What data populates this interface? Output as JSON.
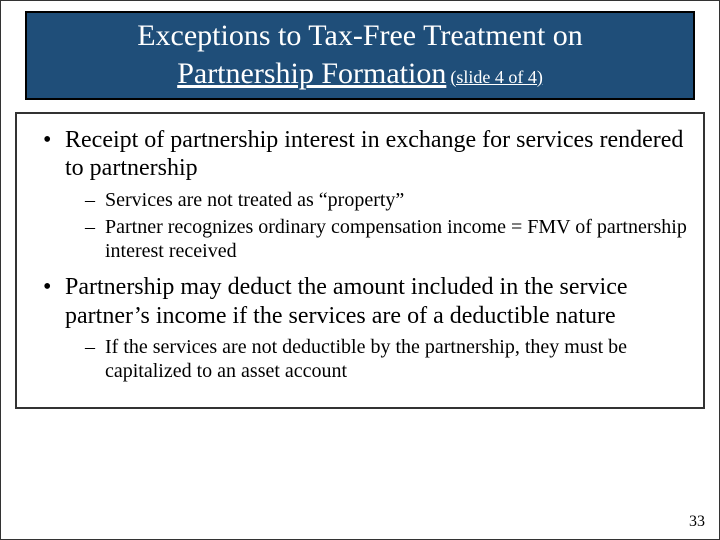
{
  "colors": {
    "title_bg": "#1f4e79",
    "title_text": "#ffffff",
    "body_text": "#000000",
    "border": "#000000",
    "slide_bg": "#ffffff"
  },
  "typography": {
    "title_fontsize_pt": 30,
    "subtitle_fontsize_pt": 18,
    "bullet_l1_fontsize_pt": 24,
    "bullet_l2_fontsize_pt": 20,
    "font_family": "Times New Roman"
  },
  "title": {
    "line1": "Exceptions to Tax-Free Treatment on",
    "line2": "Partnership Formation",
    "subtitle": "(slide 4 of 4)"
  },
  "bullets": [
    {
      "text": "Receipt of partnership interest in exchange for services rendered to partnership",
      "children": [
        {
          "text": "Services are not treated as “property”"
        },
        {
          "text": "Partner recognizes ordinary compensation income = FMV of partnership interest received"
        }
      ]
    },
    {
      "text": "Partnership may deduct the amount included in the service partner’s income if the services are of a deductible nature",
      "children": [
        {
          "text": "If the services are not deductible by the partnership, they must be capitalized to an asset account"
        }
      ]
    }
  ],
  "page_number": "33"
}
